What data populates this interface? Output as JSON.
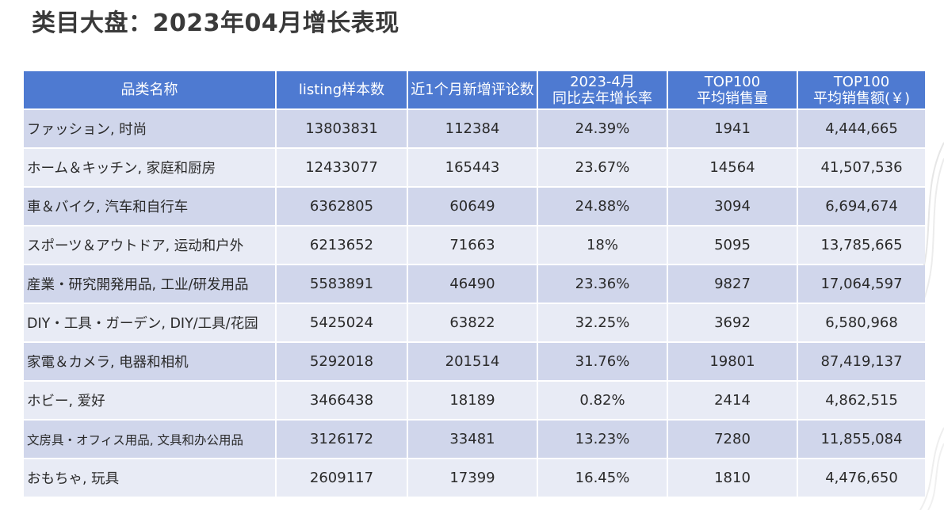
{
  "title": "类目大盘：2023年04月增长表现",
  "table": {
    "headers": [
      [
        "品类名称"
      ],
      [
        "listing样本数"
      ],
      [
        "近1个月新增评论数"
      ],
      [
        "2023-4月",
        "同比去年增长率"
      ],
      [
        "TOP100",
        "平均销售量"
      ],
      [
        "TOP100",
        "平均销售额(￥)"
      ]
    ],
    "rows": [
      [
        "ファッション, 时尚",
        "13803831",
        "112384",
        "24.39%",
        "1941",
        "4,444,665"
      ],
      [
        "ホーム＆キッチン, 家庭和厨房",
        "12433077",
        "165443",
        "23.67%",
        "14564",
        "41,507,536"
      ],
      [
        "車＆バイク, 汽车和自行车",
        "6362805",
        "60649",
        "24.88%",
        "3094",
        "6,694,674"
      ],
      [
        "スポーツ＆アウトドア, 运动和户外",
        "6213652",
        "71663",
        "18%",
        "5095",
        "13,785,665"
      ],
      [
        "産業・研究開発用品, 工业/研发用品",
        "5583891",
        "46490",
        "23.36%",
        "9827",
        "17,064,597"
      ],
      [
        "DIY・工具・ガーデン, DIY/工具/花园",
        "5425024",
        "63822",
        "32.25%",
        "3692",
        "6,580,968"
      ],
      [
        "家電＆カメラ, 电器和相机",
        "5292018",
        "201514",
        "31.76%",
        "19801",
        "87,419,137"
      ],
      [
        "ホビー, 爱好",
        "3466438",
        "18189",
        "0.82%",
        "2414",
        "4,862,515"
      ],
      [
        "文房具・オフィス用品, 文具和办公用品",
        "3126172",
        "33481",
        "13.23%",
        "7280",
        "11,855,084"
      ],
      [
        "おもちゃ, 玩具",
        "2609117",
        "17399",
        "16.45%",
        "1810",
        "4,476,650"
      ]
    ]
  },
  "colors": {
    "header_bg": "#4e7ad1",
    "row_dark": "#d0d6eb",
    "row_light": "#e8ebf5",
    "title_text": "#3a3a3a"
  }
}
